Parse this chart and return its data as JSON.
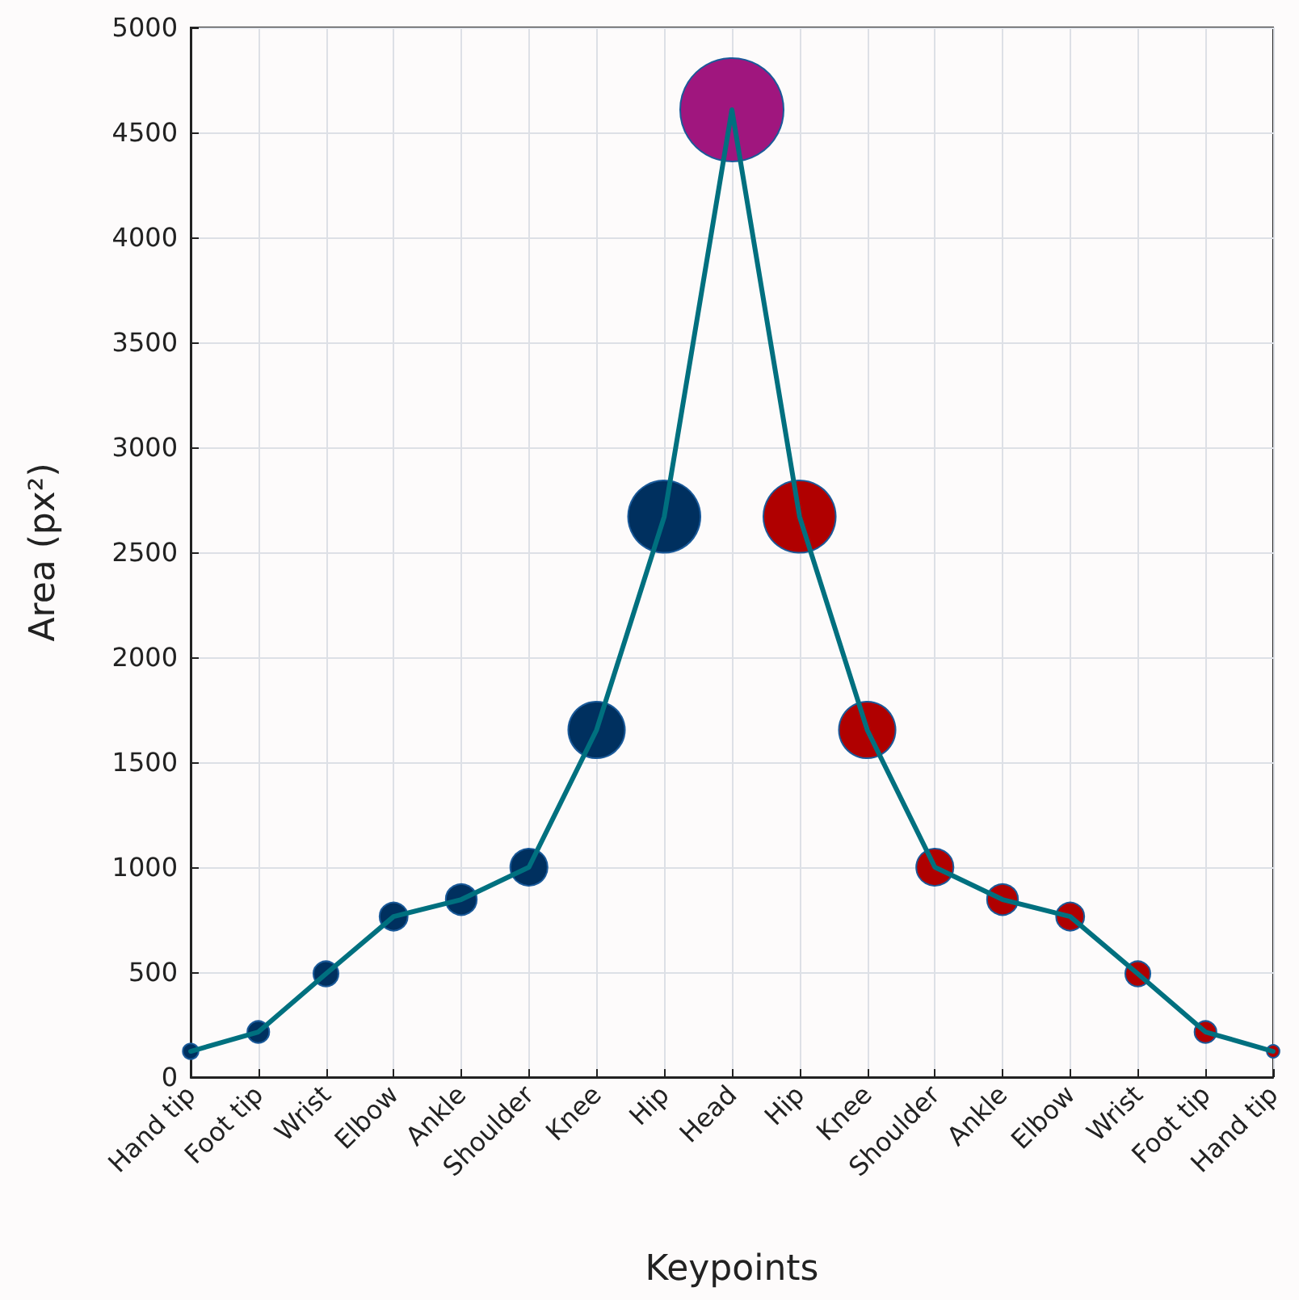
{
  "chart_data": {
    "type": "line",
    "xlabel": "Keypoints",
    "ylabel": "Area (px²)",
    "categories": [
      "Hand tip",
      "Foot tip",
      "Wrist",
      "Elbow",
      "Ankle",
      "Shoulder",
      "Knee",
      "Hip",
      "Head",
      "Hip",
      "Knee",
      "Shoulder",
      "Ankle",
      "Elbow",
      "Wrist",
      "Foot tip",
      "Hand tip"
    ],
    "series": [
      {
        "color": "#00707f",
        "marker": "none",
        "line_style": "solid",
        "values": [
          123,
          215,
          492,
          765,
          846,
          1000,
          1654,
          2670,
          4608,
          2670,
          1654,
          1000,
          846,
          765,
          492,
          215,
          123
        ]
      },
      {
        "type": "bubble",
        "marker": "circle",
        "values": [
          123,
          215,
          492,
          765,
          846,
          1000,
          1654,
          2670,
          4608,
          2670,
          1654,
          1000,
          846,
          765,
          492,
          215,
          123
        ],
        "sizes": [
          0.023,
          0.045,
          0.059,
          0.074,
          0.09,
          0.13,
          0.3,
          0.49,
          1,
          0.49,
          0.3,
          0.13,
          0.09,
          0.074,
          0.059,
          0.045,
          0.015
        ],
        "colors": [
          "#00305f",
          "#00305f",
          "#00305f",
          "#00305f",
          "#00305f",
          "#00305f",
          "#00305f",
          "#00305f",
          "#a0167e",
          "#b00000",
          "#b00000",
          "#b00000",
          "#b00000",
          "#b00000",
          "#b00000",
          "#b00000",
          "#b00000"
        ]
      }
    ],
    "ylim": [
      0,
      5000
    ],
    "yticks": [
      0,
      500,
      1000,
      1500,
      2000,
      2500,
      3000,
      3500,
      4000,
      4500,
      5000
    ],
    "grid": true
  }
}
